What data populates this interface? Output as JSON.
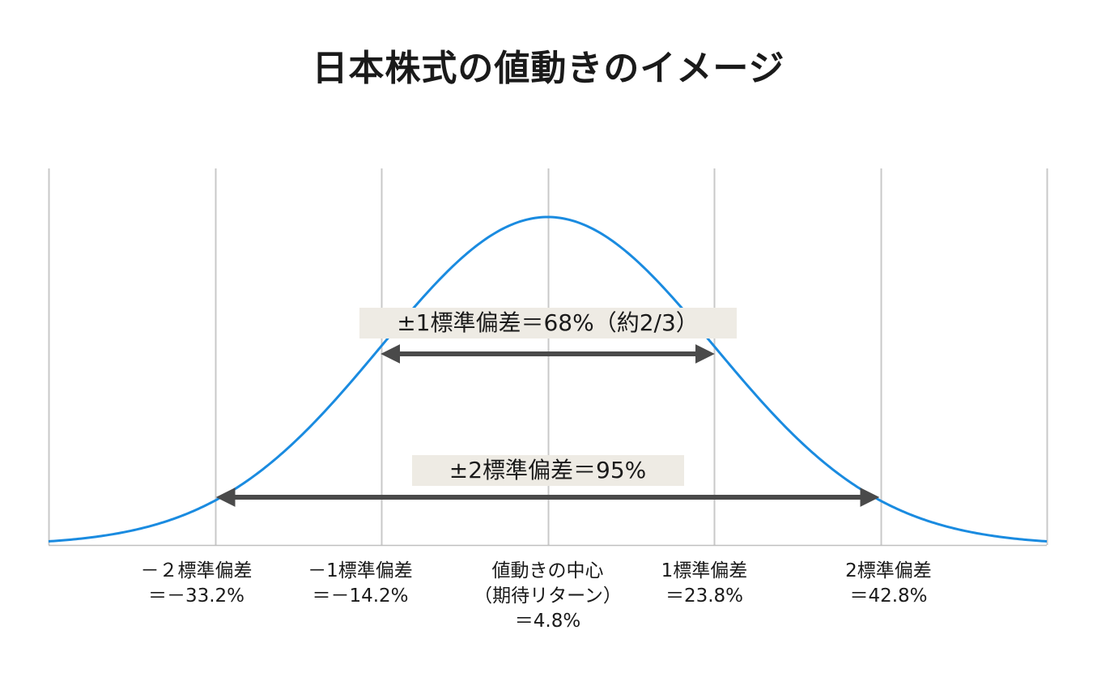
{
  "chart_data": {
    "type": "line",
    "title": "日本株式の値動きのイメージ",
    "distribution": "normal",
    "mean": 4.8,
    "std_dev": 19.0,
    "xlim": [
      -52.2,
      61.8
    ],
    "x_ticks": [
      -33.2,
      -14.2,
      4.8,
      23.8,
      42.8
    ],
    "tick_labels": [
      "－２標準偏差\n＝－33.2%",
      "－1標準偏差\n＝－14.2%",
      "値動きの中心\n（期待リターン）\n＝4.8%",
      "1標準偏差\n＝23.8%",
      "2標準偏差\n＝42.8%"
    ],
    "ranges": [
      {
        "label": "±1標準偏差＝68%（約2/3）",
        "from": -14.2,
        "to": 23.8
      },
      {
        "label": "±2標準偏差＝95%",
        "from": -33.2,
        "to": 42.8
      }
    ],
    "grid": true,
    "colors": {
      "curve": "#1a8be0",
      "grid": "#c8c8c8",
      "arrow": "#4a4a4a",
      "label_bg": "#eeebe4"
    }
  }
}
